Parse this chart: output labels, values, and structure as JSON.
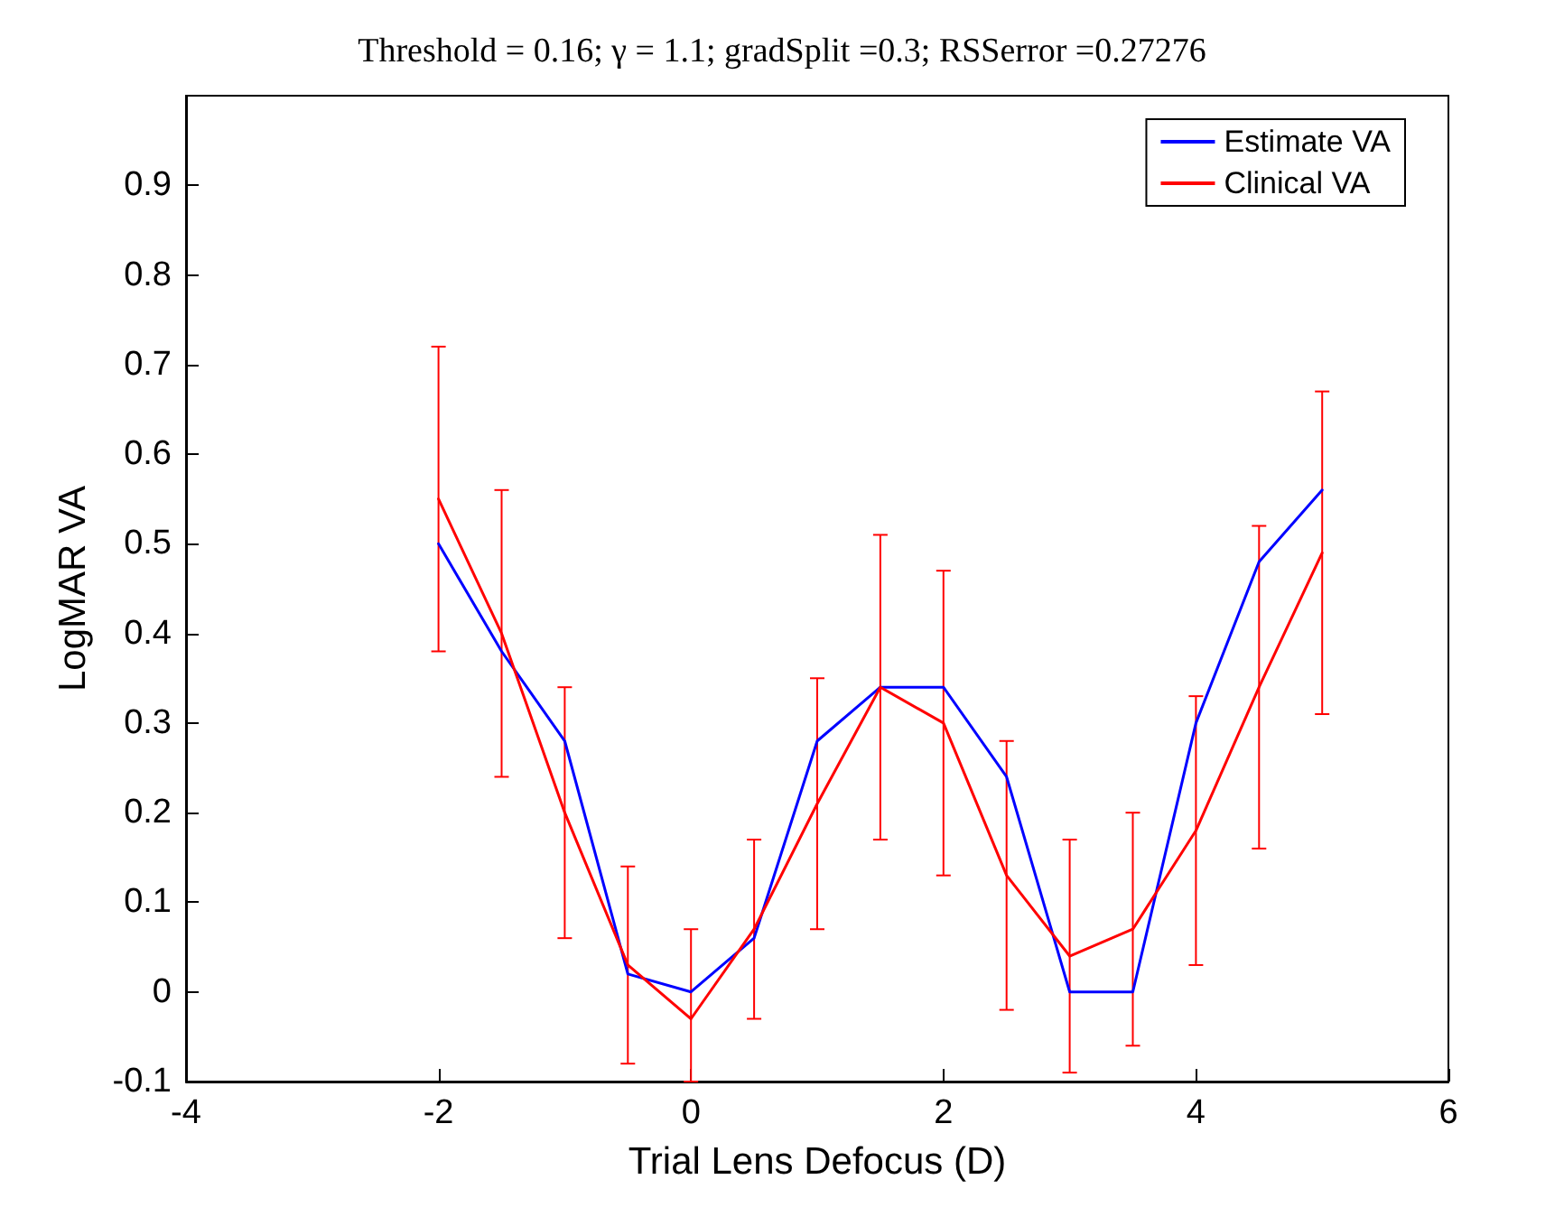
{
  "chart_data": {
    "type": "line",
    "title": "Threshold = 0.16; γ = 1.1; gradSplit =0.3; RSSerror =0.27276",
    "xlabel": "Trial Lens Defocus (D)",
    "ylabel": "LogMAR VA",
    "x": [
      -2,
      -1.5,
      -1,
      -0.5,
      0,
      0.5,
      1,
      1.5,
      2,
      2.5,
      3,
      3.5,
      4,
      4.5,
      5
    ],
    "series": [
      {
        "name": "Estimate VA",
        "color": "#0000ff",
        "values": [
          0.5,
          0.38,
          0.28,
          0.02,
          0,
          0.06,
          0.28,
          0.34,
          0.34,
          0.24,
          0,
          0,
          0.3,
          0.48,
          0.56
        ]
      },
      {
        "name": "Clinical VA",
        "color": "#ff0000",
        "values": [
          0.55,
          0.4,
          0.2,
          0.03,
          -0.03,
          0.07,
          0.21,
          0.34,
          0.3,
          0.13,
          0.04,
          0.07,
          0.18,
          0.34,
          0.49
        ],
        "errors": [
          [
            0.38,
            0.72
          ],
          [
            0.24,
            0.56
          ],
          [
            0.06,
            0.34
          ],
          [
            -0.08,
            0.14
          ],
          [
            -0.1,
            0.07
          ],
          [
            -0.03,
            0.17
          ],
          [
            0.07,
            0.35
          ],
          [
            0.17,
            0.51
          ],
          [
            0.13,
            0.47
          ],
          [
            -0.02,
            0.28
          ],
          [
            -0.09,
            0.17
          ],
          [
            -0.06,
            0.2
          ],
          [
            0.03,
            0.33
          ],
          [
            0.16,
            0.52
          ],
          [
            0.31,
            0.67
          ]
        ]
      }
    ],
    "xlim": [
      -4,
      6
    ],
    "xticks": [
      -4,
      -2,
      0,
      2,
      4,
      6
    ],
    "ylim": [
      -0.1,
      1
    ],
    "yticks": [
      -0.1,
      0,
      0.1,
      0.2,
      0.3,
      0.4,
      0.5,
      0.6,
      0.7,
      0.8,
      0.9
    ],
    "grid": false,
    "legend": "top right",
    "marker": "none",
    "line_style": "solid"
  }
}
